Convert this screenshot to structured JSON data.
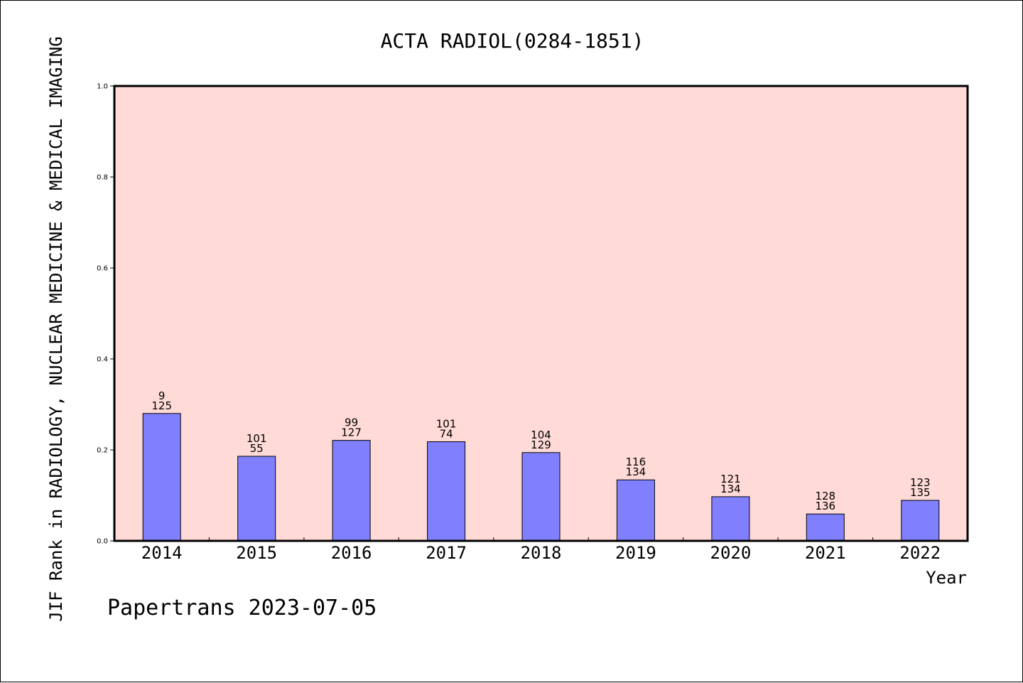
{
  "chart_data": {
    "type": "bar",
    "title": "ACTA RADIOL(0284-1851)",
    "ylabel": "JIF Rank in RADIOLOGY, NUCLEAR MEDICINE & MEDICAL IMAGING",
    "xlabel": "Year",
    "categories": [
      "2014",
      "2015",
      "2016",
      "2017",
      "2018",
      "2019",
      "2020",
      "2021",
      "2022"
    ],
    "values": [
      0.28,
      0.186,
      0.221,
      0.218,
      0.194,
      0.134,
      0.097,
      0.059,
      0.089
    ],
    "label_top": [
      "9",
      "101",
      "99",
      "101",
      "104",
      "116",
      "121",
      "128",
      "123"
    ],
    "label_bottom": [
      "125",
      "55",
      "127",
      "74",
      "129",
      "134",
      "134",
      "136",
      "135"
    ],
    "ylim": [
      0,
      1.0
    ],
    "yticks": [
      "0.0",
      "0.2",
      "0.4",
      "0.6",
      "0.8",
      "1.0"
    ],
    "grid": false,
    "colors": {
      "plot_background": "#ffdad6",
      "bar_fill": "#8080ff",
      "bar_stroke": "#000000"
    }
  },
  "footer": {
    "text": "Papertrans 2023-07-05"
  }
}
